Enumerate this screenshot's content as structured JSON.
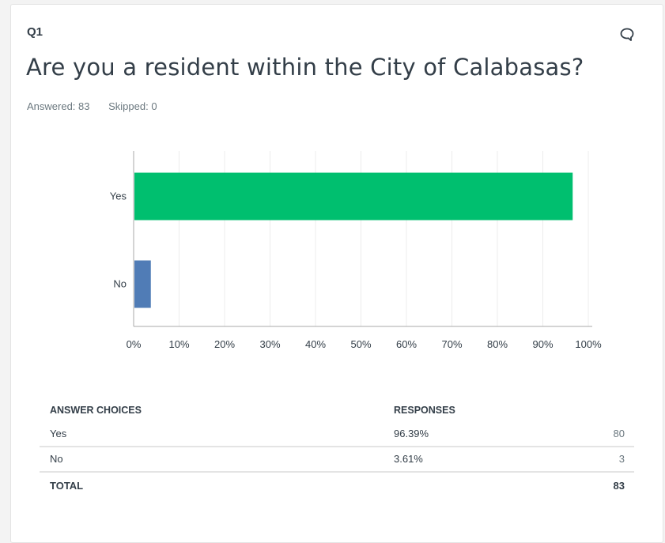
{
  "question": {
    "number": "Q1",
    "title": "Are you a resident within the City of Calabasas?",
    "answered": "Answered: 83",
    "skipped": "Skipped: 0"
  },
  "icons": {
    "comment": "comment-bubble-icon"
  },
  "colors": {
    "yes_bar": "#00bf6f",
    "no_bar": "#507cb6",
    "grid": "#ececec",
    "axis": "#aaaaaa"
  },
  "chart_data": {
    "type": "bar",
    "orientation": "horizontal",
    "categories": [
      "Yes",
      "No"
    ],
    "values": [
      96.39,
      3.61
    ],
    "unit": "%",
    "xlim": [
      0,
      100
    ],
    "xticks": [
      "0%",
      "10%",
      "20%",
      "30%",
      "40%",
      "50%",
      "60%",
      "70%",
      "80%",
      "90%",
      "100%"
    ],
    "grid": true
  },
  "table": {
    "headers": [
      "ANSWER CHOICES",
      "RESPONSES"
    ],
    "rows": [
      {
        "choice": "Yes",
        "percent": "96.39%",
        "count": "80"
      },
      {
        "choice": "No",
        "percent": "3.61%",
        "count": "3"
      }
    ],
    "total_label": "TOTAL",
    "total_count": "83"
  }
}
